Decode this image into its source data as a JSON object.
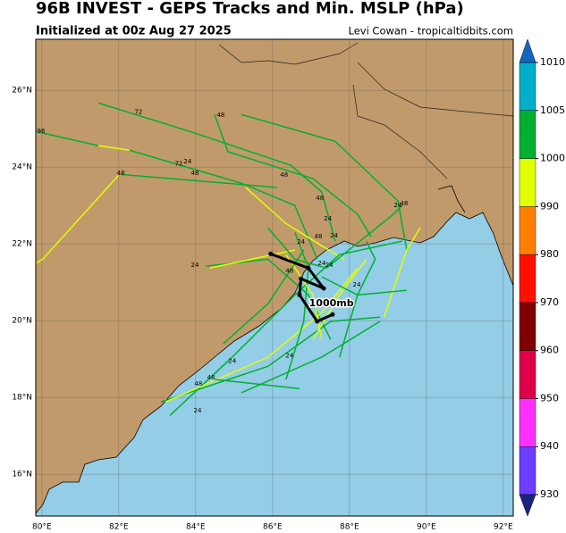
{
  "chart_data": {
    "type": "map",
    "title": "96B INVEST - GEPS Tracks and Min. MSLP (hPa)",
    "subtitle": "Initialized at 00z Aug 27 2025",
    "credit": "Levi Cowan - tropicaltidbits.com",
    "xlim": [
      79.84,
      92.26
    ],
    "ylim": [
      14.91,
      27.33
    ],
    "xticks": [
      {
        "value": 80,
        "label": "80°E"
      },
      {
        "value": 82,
        "label": "82°E"
      },
      {
        "value": 84,
        "label": "84°E"
      },
      {
        "value": 86,
        "label": "86°E"
      },
      {
        "value": 88,
        "label": "88°E"
      },
      {
        "value": 90,
        "label": "90°E"
      },
      {
        "value": 92,
        "label": "92°E"
      }
    ],
    "yticks": [
      {
        "value": 16,
        "label": "16°N"
      },
      {
        "value": 18,
        "label": "18°N"
      },
      {
        "value": 20,
        "label": "20°N"
      },
      {
        "value": 22,
        "label": "22°N"
      },
      {
        "value": 24,
        "label": "24°N"
      },
      {
        "value": 26,
        "label": "26°N"
      }
    ],
    "grid": true,
    "tracks": [
      {
        "color": "#00b030",
        "lon": [
          81.47,
          83.91,
          86.47,
          87.28,
          87.63
        ],
        "lat": [
          25.67,
          24.91,
          24.05,
          23.35,
          22.07
        ]
      },
      {
        "color": "#00b030",
        "lon": [
          79.84,
          81.47
        ],
        "lat": [
          24.93,
          24.56
        ]
      },
      {
        "color": "#e0ff00",
        "lon": [
          81.47,
          82.28
        ],
        "lat": [
          24.56,
          24.44
        ]
      },
      {
        "color": "#00b030",
        "lon": [
          82.28,
          85.19,
          86.58,
          87.16
        ],
        "lat": [
          24.44,
          23.58,
          23.0,
          21.6
        ]
      },
      {
        "color": "#00b030",
        "lon": [
          84.49,
          84.84,
          87.05,
          88.21,
          88.56
        ],
        "lat": [
          25.37,
          24.4,
          23.7,
          22.77,
          22.19
        ]
      },
      {
        "color": "#00b030",
        "lon": [
          85.19,
          87.63,
          89.26,
          89.49
        ],
        "lat": [
          25.37,
          24.67,
          23.12,
          21.84
        ]
      },
      {
        "color": "#e0ff00",
        "lon": [
          79.84,
          80.02,
          81.98
        ],
        "lat": [
          21.49,
          21.6,
          23.77
        ]
      },
      {
        "color": "#00b030",
        "lon": [
          82.05,
          86.12
        ],
        "lat": [
          23.81,
          23.47
        ]
      },
      {
        "color": "#e0ff00",
        "lon": [
          85.3,
          86.35,
          87.28,
          87.86
        ],
        "lat": [
          23.47,
          22.53,
          21.95,
          21.6
        ]
      },
      {
        "color": "#00b030",
        "lon": [
          84.26,
          85.88,
          86.93,
          87.51
        ],
        "lat": [
          21.42,
          21.6,
          20.67,
          19.51
        ]
      },
      {
        "color": "#e0ff00",
        "lon": [
          84.37,
          86.58
        ],
        "lat": [
          21.37,
          21.84
        ]
      },
      {
        "color": "#00b030",
        "lon": [
          83.33,
          84.95,
          86.58,
          87.74,
          89.37
        ],
        "lat": [
          17.53,
          19.05,
          20.67,
          21.72,
          22.07
        ]
      },
      {
        "color": "#00b030",
        "lon": [
          83.09,
          85.88,
          87.51,
          88.79
        ],
        "lat": [
          17.88,
          18.81,
          19.98,
          20.09
        ]
      },
      {
        "color": "#e0ff00",
        "lon": [
          83.21,
          85.88,
          87.28,
          88.21
        ],
        "lat": [
          17.88,
          19.05,
          20.21,
          21.37
        ]
      },
      {
        "color": "#00b030",
        "lon": [
          85.19,
          87.28,
          88.79
        ],
        "lat": [
          18.12,
          19.05,
          19.98
        ]
      },
      {
        "color": "#00b030",
        "lon": [
          84.49,
          86.7
        ],
        "lat": [
          18.47,
          18.23
        ]
      },
      {
        "color": "#00b030",
        "lon": [
          86.35,
          86.81,
          86.93,
          86.58
        ],
        "lat": [
          18.47,
          19.98,
          21.37,
          22.3
        ]
      },
      {
        "color": "#00b030",
        "lon": [
          87.74,
          88.21,
          88.67,
          88.44
        ],
        "lat": [
          19.05,
          20.67,
          21.6,
          22.07
        ]
      },
      {
        "color": "#e0ff00",
        "lon": [
          88.9,
          89.49,
          89.84
        ],
        "lat": [
          20.09,
          21.84,
          22.42
        ]
      },
      {
        "color": "#00b030",
        "lon": [
          85.88,
          86.58,
          87.4,
          89.14,
          89.37
        ],
        "lat": [
          22.42,
          21.6,
          21.37,
          22.77,
          23.0
        ]
      },
      {
        "color": "#e0ff00",
        "lon": [
          86.35,
          87.05,
          87.28
        ],
        "lat": [
          21.72,
          20.67,
          19.51
        ]
      },
      {
        "color": "#00b030",
        "lon": [
          84.72,
          85.88,
          86.81
        ],
        "lat": [
          19.4,
          20.44,
          21.84
        ]
      },
      {
        "color": "#e0ff00",
        "lon": [
          87.05,
          87.74,
          88.44
        ],
        "lat": [
          19.51,
          20.67,
          21.6
        ]
      },
      {
        "color": "#00b030",
        "lon": [
          87.28,
          88.21,
          89.49
        ],
        "lat": [
          21.14,
          20.67,
          20.79
        ]
      }
    ],
    "mean_track": {
      "color": "#000000",
      "lon": [
        85.95,
        86.93,
        87.33,
        86.74,
        86.7,
        87.16,
        87.56
      ],
      "lat": [
        21.74,
        21.37,
        20.84,
        21.09,
        20.67,
        19.98,
        20.16
      ]
    },
    "annotation": {
      "text": "1000mb",
      "lon": 87.53,
      "lat": 20.44
    },
    "hour_labels": [
      {
        "label": "96",
        "lon": 79.98,
        "lat": 24.93
      },
      {
        "label": "72",
        "lon": 82.51,
        "lat": 25.44
      },
      {
        "label": "72",
        "lon": 83.56,
        "lat": 24.09
      },
      {
        "label": "24",
        "lon": 83.79,
        "lat": 24.14
      },
      {
        "label": "48",
        "lon": 83.98,
        "lat": 23.84
      },
      {
        "label": "48",
        "lon": 82.05,
        "lat": 23.84
      },
      {
        "label": "48",
        "lon": 84.65,
        "lat": 25.35
      },
      {
        "label": "48",
        "lon": 86.3,
        "lat": 23.79
      },
      {
        "label": "48",
        "lon": 87.23,
        "lat": 23.19
      },
      {
        "label": "24",
        "lon": 87.44,
        "lat": 22.65
      },
      {
        "label": "48",
        "lon": 87.19,
        "lat": 22.19
      },
      {
        "label": "24",
        "lon": 87.6,
        "lat": 22.21
      },
      {
        "label": "24",
        "lon": 86.74,
        "lat": 22.05
      },
      {
        "label": "24",
        "lon": 89.26,
        "lat": 23.0
      },
      {
        "label": "48",
        "lon": 89.42,
        "lat": 23.05
      },
      {
        "label": "24",
        "lon": 83.98,
        "lat": 21.44
      },
      {
        "label": "48",
        "lon": 86.44,
        "lat": 21.3
      },
      {
        "label": "24",
        "lon": 87.28,
        "lat": 21.49
      },
      {
        "label": "24",
        "lon": 87.47,
        "lat": 21.44
      },
      {
        "label": "24",
        "lon": 88.19,
        "lat": 20.93
      },
      {
        "label": "24",
        "lon": 84.95,
        "lat": 18.95
      },
      {
        "label": "24",
        "lon": 86.44,
        "lat": 19.09
      },
      {
        "label": "48",
        "lon": 84.4,
        "lat": 18.51
      },
      {
        "label": "48",
        "lon": 84.07,
        "lat": 18.35
      },
      {
        "label": "24",
        "lon": 84.05,
        "lat": 17.65
      }
    ],
    "colorbar": {
      "ticks": [
        930,
        940,
        950,
        960,
        970,
        980,
        990,
        1000,
        1005,
        1010
      ],
      "colors": [
        "#6a3dff",
        "#ff30ff",
        "#e0004a",
        "#800000",
        "#ff1000",
        "#ff8000",
        "#e0ff00",
        "#00b030",
        "#00b0c8"
      ],
      "under": "#1a237e",
      "over": "#1565c0"
    }
  }
}
